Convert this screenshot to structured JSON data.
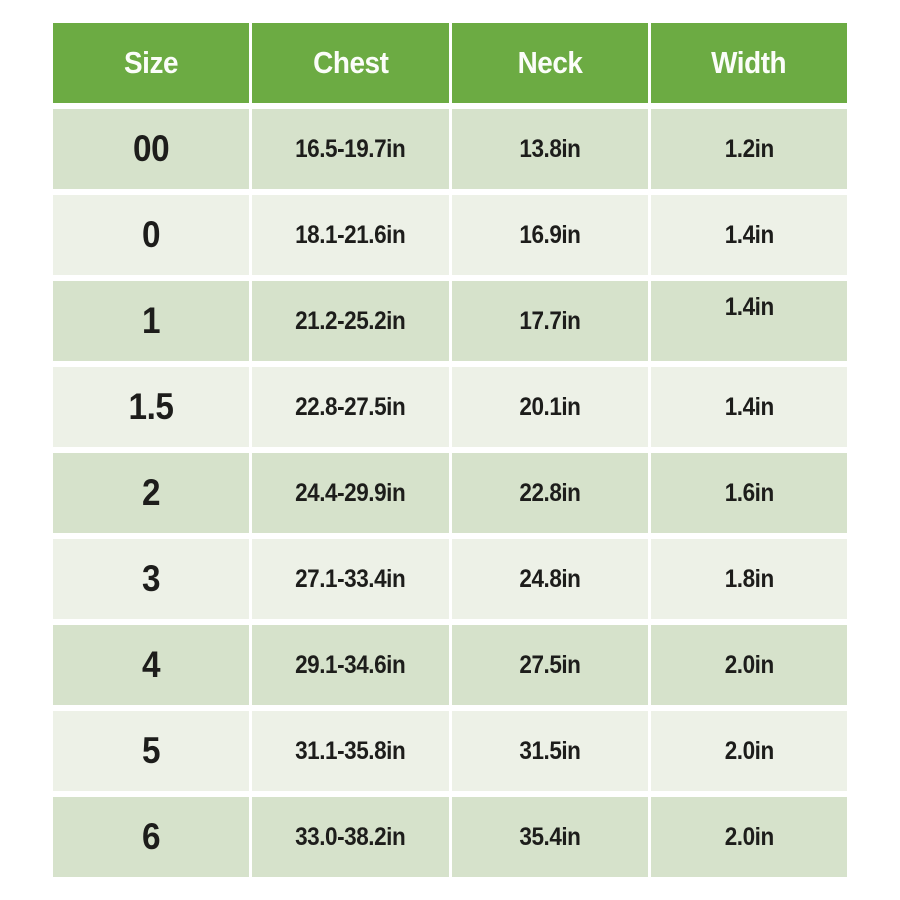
{
  "chart_data": {
    "type": "table",
    "title": "",
    "columns": [
      "Size",
      "Chest",
      "Neck",
      "Width"
    ],
    "rows": [
      [
        "00",
        "16.5-19.7in",
        "13.8in",
        "1.2in"
      ],
      [
        "0",
        "18.1-21.6in",
        "16.9in",
        "1.4in"
      ],
      [
        "1",
        "21.2-25.2in",
        "17.7in",
        "1.4in"
      ],
      [
        "1.5",
        "22.8-27.5in",
        "20.1in",
        "1.4in"
      ],
      [
        "2",
        "24.4-29.9in",
        "22.8in",
        "1.6in"
      ],
      [
        "3",
        "27.1-33.4in",
        "24.8in",
        "1.8in"
      ],
      [
        "4",
        "29.1-34.6in",
        "27.5in",
        "2.0in"
      ],
      [
        "5",
        "31.1-35.8in",
        "31.5in",
        "2.0in"
      ],
      [
        "6",
        "33.0-38.2in",
        "35.4in",
        "2.0in"
      ]
    ],
    "units": "in"
  },
  "colors": {
    "header_bg": "#6cab43",
    "header_text": "#fbfdf9",
    "row_dark": "#d6e2cb",
    "row_light": "#edf1e7",
    "cell_text": "#1d1d1b",
    "page_bg": "#ffffff"
  }
}
